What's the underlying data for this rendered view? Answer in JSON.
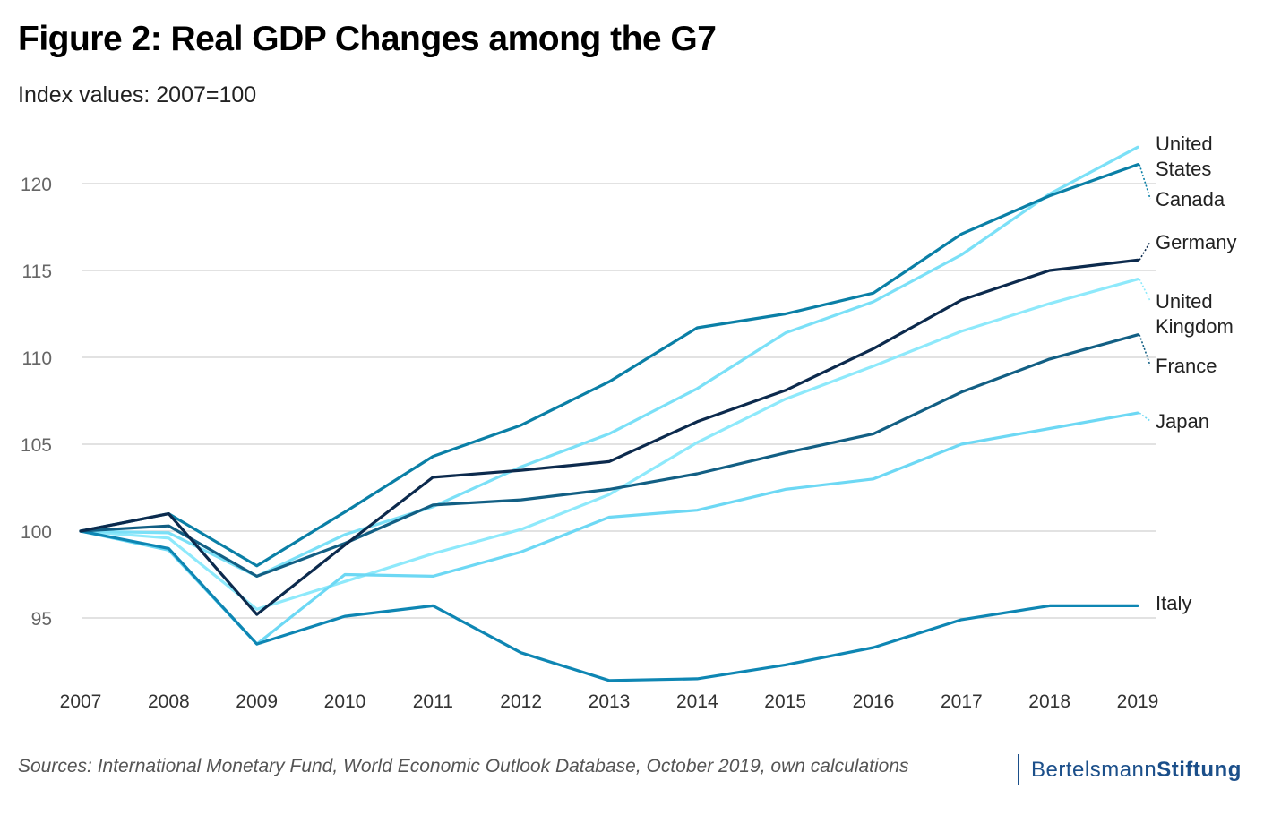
{
  "title": "Figure 2: Real GDP Changes among the G7",
  "subtitle": "Index values: 2007=100",
  "source": "Sources: International Monetary Fund, World Economic Outlook Database, October 2019, own calculations",
  "logo": {
    "part1": "Bertelsmann",
    "part2": "Stiftung"
  },
  "chart_data": {
    "type": "line",
    "x": [
      "2007",
      "2008",
      "2009",
      "2010",
      "2011",
      "2012",
      "2013",
      "2014",
      "2015",
      "2016",
      "2017",
      "2018",
      "2019"
    ],
    "yticks": [
      95,
      100,
      105,
      110,
      115,
      120
    ],
    "ylim": [
      91,
      123
    ],
    "grid": true,
    "series": [
      {
        "name": "United States",
        "label_lines": [
          "United",
          "States"
        ],
        "color": "#7be0f7",
        "values": [
          100,
          99.9,
          97.4,
          99.8,
          101.4,
          103.7,
          105.6,
          108.2,
          111.4,
          113.2,
          115.9,
          119.4,
          122.1
        ]
      },
      {
        "name": "Canada",
        "label_lines": [
          "Canada"
        ],
        "color": "#0a7fa6",
        "values": [
          100,
          101.0,
          98.0,
          101.1,
          104.3,
          106.1,
          108.6,
          111.7,
          112.5,
          113.7,
          117.1,
          119.3,
          121.1
        ]
      },
      {
        "name": "Germany",
        "label_lines": [
          "Germany"
        ],
        "color": "#0c2a4d",
        "values": [
          100,
          101.0,
          95.2,
          99.2,
          103.1,
          103.5,
          104.0,
          106.3,
          108.1,
          110.5,
          113.3,
          115.0,
          115.6
        ]
      },
      {
        "name": "United Kingdom",
        "label_lines": [
          "United",
          "Kingdom"
        ],
        "color": "#8ee9fb",
        "values": [
          100,
          99.6,
          95.5,
          97.1,
          98.7,
          100.1,
          102.1,
          105.1,
          107.6,
          109.5,
          111.5,
          113.1,
          114.5
        ]
      },
      {
        "name": "France",
        "label_lines": [
          "France"
        ],
        "color": "#125f84",
        "values": [
          100,
          100.3,
          97.4,
          99.3,
          101.5,
          101.8,
          102.4,
          103.3,
          104.5,
          105.6,
          108.0,
          109.9,
          111.3
        ]
      },
      {
        "name": "Japan",
        "label_lines": [
          "Japan"
        ],
        "color": "#6dd8f4",
        "values": [
          100,
          98.9,
          93.5,
          97.5,
          97.4,
          98.8,
          100.8,
          101.2,
          102.4,
          103.0,
          105.0,
          105.9,
          106.8
        ]
      },
      {
        "name": "Italy",
        "label_lines": [
          "Italy"
        ],
        "color": "#0e86b3",
        "values": [
          100,
          99.0,
          93.5,
          95.1,
          95.7,
          93.0,
          91.4,
          91.5,
          92.3,
          93.3,
          94.9,
          95.7,
          95.7
        ]
      }
    ]
  }
}
